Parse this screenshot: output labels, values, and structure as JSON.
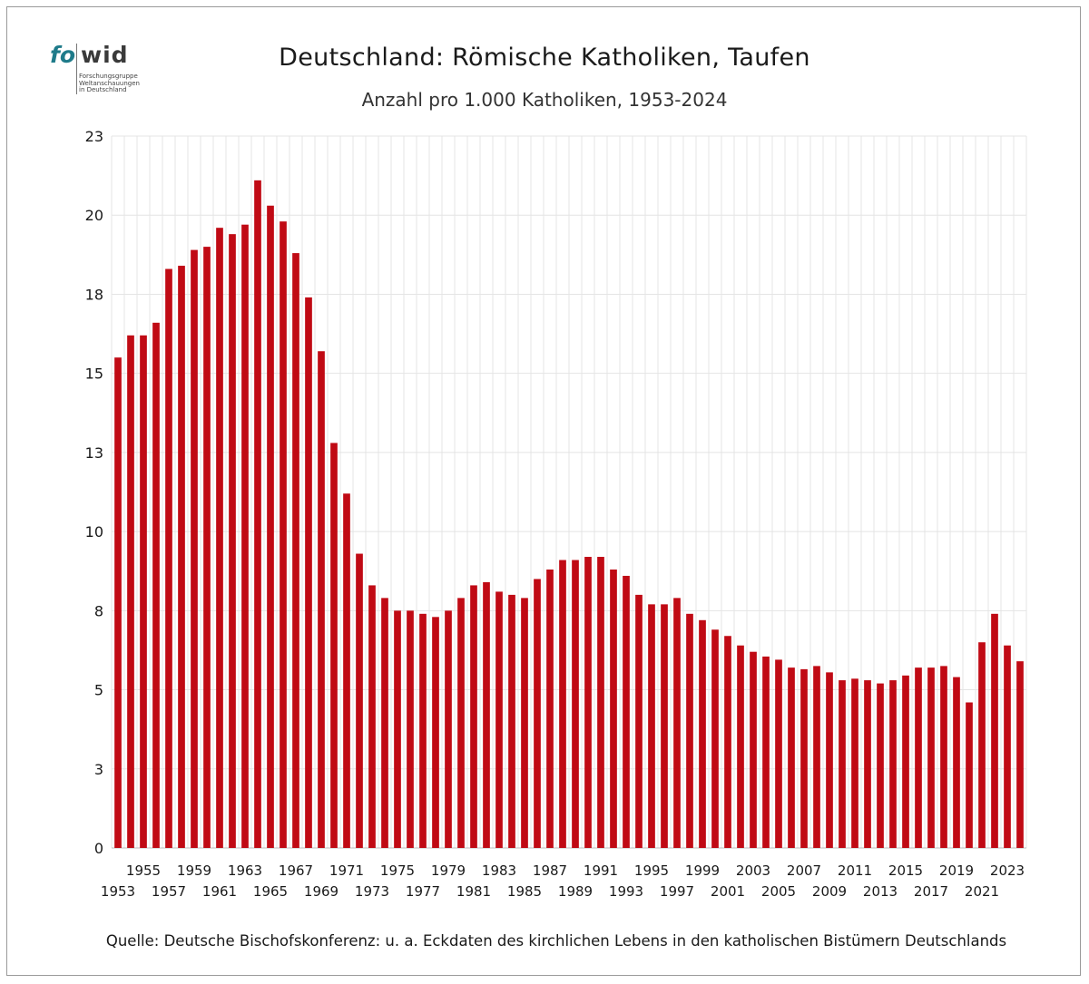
{
  "title": "Deutschland: Römische Katholiken, Taufen",
  "subtitle": "Anzahl pro 1.000 Katholiken, 1953-2024",
  "source": "Quelle: Deutsche Bischofskonferenz: u. a.  Eckdaten des kirchlichen Lebens in den katholischen Bistümern Deutschlands",
  "logo": {
    "part1": "fo",
    "part2": "wid",
    "line1": "Forschungsgruppe",
    "line2": "Weltanschauungen",
    "line3": "in Deutschland"
  },
  "colors": {
    "bar": "#c00a14",
    "grid": "#e4e4e4"
  },
  "chart_data": {
    "type": "bar",
    "title": "Deutschland: Römische Katholiken, Taufen",
    "subtitle": "Anzahl pro 1.000 Katholiken, 1953-2024",
    "xlabel": "",
    "ylabel": "",
    "ylim": [
      0,
      22.5
    ],
    "yticks": [
      0,
      2.5,
      5,
      7.5,
      10,
      12.5,
      15,
      17.5,
      20,
      22.5
    ],
    "ytick_labels": [
      "0",
      "3",
      "5",
      "8",
      "10",
      "13",
      "15",
      "18",
      "20",
      "23"
    ],
    "grid": true,
    "categories": [
      "1953",
      "1954",
      "1955",
      "1956",
      "1957",
      "1958",
      "1959",
      "1960",
      "1961",
      "1962",
      "1963",
      "1964",
      "1965",
      "1966",
      "1967",
      "1968",
      "1969",
      "1970",
      "1971",
      "1972",
      "1973",
      "1974",
      "1975",
      "1976",
      "1977",
      "1978",
      "1979",
      "1980",
      "1981",
      "1982",
      "1983",
      "1984",
      "1985",
      "1986",
      "1987",
      "1988",
      "1989",
      "1990",
      "1991",
      "1992",
      "1993",
      "1994",
      "1995",
      "1996",
      "1997",
      "1998",
      "1999",
      "2000",
      "2001",
      "2002",
      "2003",
      "2004",
      "2005",
      "2006",
      "2007",
      "2008",
      "2009",
      "2010",
      "2011",
      "2012",
      "2013",
      "2014",
      "2015",
      "2016",
      "2017",
      "2018",
      "2019",
      "2020",
      "2021",
      "2022",
      "2023",
      "2024"
    ],
    "values": [
      15.5,
      16.2,
      16.2,
      16.6,
      18.3,
      18.4,
      18.9,
      19.0,
      19.6,
      19.4,
      19.7,
      21.1,
      20.3,
      19.8,
      18.8,
      17.4,
      15.7,
      12.8,
      11.2,
      9.3,
      8.3,
      7.9,
      7.5,
      7.5,
      7.4,
      7.3,
      7.5,
      7.9,
      8.3,
      8.4,
      8.1,
      8.0,
      7.9,
      8.5,
      8.8,
      9.1,
      9.1,
      9.2,
      9.2,
      8.8,
      8.6,
      8.0,
      7.7,
      7.7,
      7.9,
      7.4,
      7.2,
      6.9,
      6.7,
      6.4,
      6.2,
      6.05,
      5.95,
      5.7,
      5.65,
      5.75,
      5.55,
      5.3,
      5.35,
      5.3,
      5.2,
      5.3,
      5.45,
      5.7,
      5.7,
      5.75,
      5.4,
      4.6,
      6.5,
      7.4,
      6.4,
      5.9
    ]
  }
}
